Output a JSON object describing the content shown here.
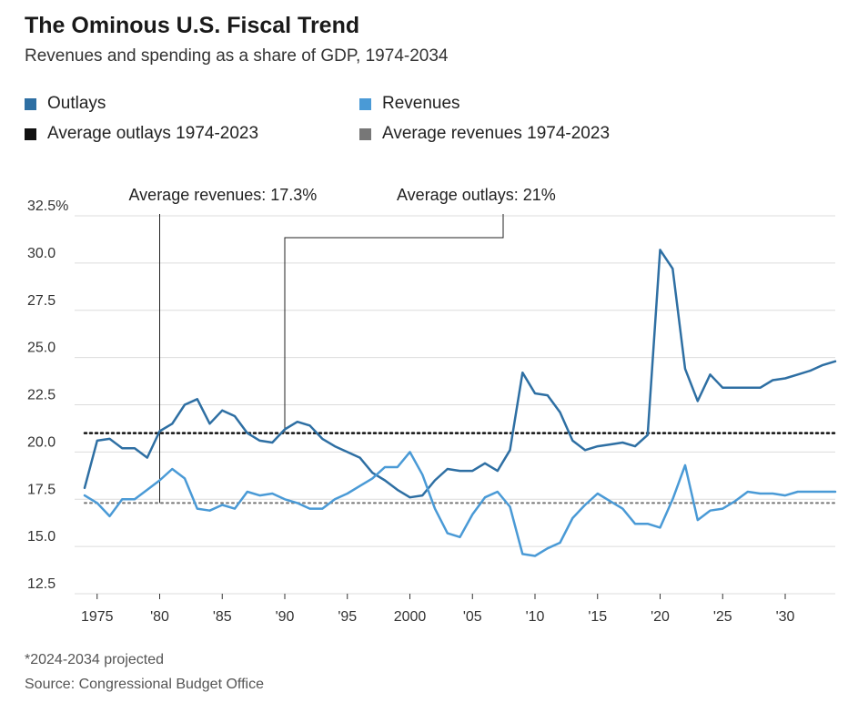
{
  "header": {
    "title": "The Ominous U.S. Fiscal Trend",
    "subtitle": "Revenues and spending as a share of GDP, 1974-2034"
  },
  "legend": {
    "items": [
      {
        "label": "Outlays",
        "color": "#2e6fa3"
      },
      {
        "label": "Revenues",
        "color": "#4a9ad6"
      },
      {
        "label": "Average outlays 1974-2023",
        "color": "#111111"
      },
      {
        "label": "Average revenues 1974-2023",
        "color": "#777777"
      }
    ]
  },
  "footer": {
    "note": "*2024-2034 projected",
    "source": "Source: Congressional Budget Office"
  },
  "chart_data": {
    "type": "line",
    "title": "The Ominous U.S. Fiscal Trend",
    "subtitle": "Revenues and spending as a share of GDP, 1974-2034",
    "xlim": [
      1974,
      2034
    ],
    "ylim": [
      12.5,
      32.5
    ],
    "y_ticks": [
      12.5,
      15.0,
      17.5,
      20.0,
      22.5,
      25.0,
      27.5,
      30.0,
      32.5
    ],
    "y_tick_labels": [
      "12.5",
      "15.0",
      "17.5",
      "20.0",
      "22.5",
      "25.0",
      "27.5",
      "30.0",
      "32.5%"
    ],
    "x_ticks": [
      1975,
      1980,
      1985,
      1990,
      1995,
      2000,
      2005,
      2010,
      2015,
      2020,
      2025,
      2030
    ],
    "x_tick_labels": [
      "1975",
      "'80",
      "'85",
      "'90",
      "'95",
      "2000",
      "'05",
      "'10",
      "'15",
      "'20",
      "'25",
      "'30"
    ],
    "grid": "horizontal",
    "legend_position": "top",
    "x": [
      1974,
      1975,
      1976,
      1977,
      1978,
      1979,
      1980,
      1981,
      1982,
      1983,
      1984,
      1985,
      1986,
      1987,
      1988,
      1989,
      1990,
      1991,
      1992,
      1993,
      1994,
      1995,
      1996,
      1997,
      1998,
      1999,
      2000,
      2001,
      2002,
      2003,
      2004,
      2005,
      2006,
      2007,
      2008,
      2009,
      2010,
      2011,
      2012,
      2013,
      2014,
      2015,
      2016,
      2017,
      2018,
      2019,
      2020,
      2021,
      2022,
      2023,
      2024,
      2025,
      2026,
      2027,
      2028,
      2029,
      2030,
      2031,
      2032,
      2033,
      2034
    ],
    "series": [
      {
        "name": "Outlays",
        "color": "#2e6fa3",
        "values": [
          18.1,
          20.6,
          20.7,
          20.2,
          20.2,
          19.7,
          21.1,
          21.5,
          22.5,
          22.8,
          21.5,
          22.2,
          21.9,
          21.0,
          20.6,
          20.5,
          21.2,
          21.6,
          21.4,
          20.7,
          20.3,
          20.0,
          19.7,
          18.9,
          18.5,
          18.0,
          17.6,
          17.7,
          18.5,
          19.1,
          19.0,
          19.0,
          19.4,
          19.0,
          20.1,
          24.2,
          23.1,
          23.0,
          22.1,
          20.6,
          20.1,
          20.3,
          20.4,
          20.5,
          20.3,
          20.9,
          30.7,
          29.7,
          24.4,
          22.7,
          24.1,
          23.4,
          23.4,
          23.4,
          23.4,
          23.8,
          23.9,
          24.1,
          24.3,
          24.6,
          24.8
        ]
      },
      {
        "name": "Revenues",
        "color": "#4a9ad6",
        "values": [
          17.7,
          17.3,
          16.6,
          17.5,
          17.5,
          18.0,
          18.5,
          19.1,
          18.6,
          17.0,
          16.9,
          17.2,
          17.0,
          17.9,
          17.7,
          17.8,
          17.5,
          17.3,
          17.0,
          17.0,
          17.5,
          17.8,
          18.2,
          18.6,
          19.2,
          19.2,
          20.0,
          18.8,
          17.0,
          15.7,
          15.5,
          16.7,
          17.6,
          17.9,
          17.1,
          14.6,
          14.5,
          14.9,
          15.2,
          16.5,
          17.2,
          17.8,
          17.4,
          17.0,
          16.2,
          16.2,
          16.0,
          17.5,
          19.3,
          16.4,
          16.9,
          17.0,
          17.4,
          17.9,
          17.8,
          17.8,
          17.7,
          17.9,
          17.9,
          17.9,
          17.9
        ]
      }
    ],
    "reference_lines": [
      {
        "name": "Average outlays 1974-2023",
        "value": 21.0,
        "color": "#111111",
        "style": "dotted"
      },
      {
        "name": "Average revenues 1974-2023",
        "value": 17.3,
        "color": "#777777",
        "style": "dotted"
      }
    ],
    "annotations": [
      {
        "text": "Average revenues: 17.3%",
        "x": 1980,
        "y": 17.3
      },
      {
        "text": "Average outlays: 21%",
        "x": 1990,
        "y": 21.0
      }
    ]
  }
}
